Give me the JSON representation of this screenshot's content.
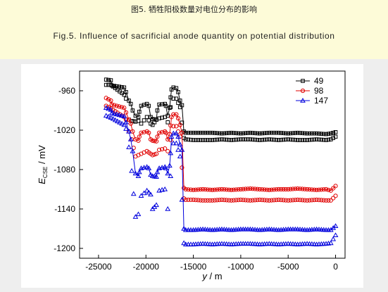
{
  "captions": {
    "cn": "图5. 牺牲阳极数量对电位分布的影响",
    "en": "Fig.5. Influence of sacrificial anode quantity on potential distribution"
  },
  "chart_data": {
    "type": "scatter",
    "xlabel": "y / m",
    "xlabel_var": "y",
    "xlabel_unit": " / m",
    "ylabel_var": "E",
    "ylabel_sub": "CSE",
    "ylabel_unit": " / mV",
    "xlim": [
      -27000,
      1000
    ],
    "ylim": [
      -1215,
      -930
    ],
    "xticks": [
      -25000,
      -20000,
      -15000,
      -10000,
      -5000,
      0
    ],
    "yticks": [
      -960,
      -1020,
      -1080,
      -1140,
      -1200
    ],
    "legend_position": "top-right",
    "series": [
      {
        "name": "49",
        "color": "#000000",
        "marker": "square",
        "upper": [
          [
            -24200,
            -943
          ],
          [
            -23700,
            -944
          ],
          [
            -23600,
            -952
          ],
          [
            -22300,
            -955
          ],
          [
            -22100,
            -962
          ],
          [
            -21800,
            -975
          ],
          [
            -21600,
            -980
          ],
          [
            -21400,
            -990
          ],
          [
            -21100,
            -998
          ],
          [
            -20800,
            -1000
          ],
          [
            -20700,
            -992
          ],
          [
            -20500,
            -983
          ],
          [
            -19900,
            -980
          ],
          [
            -19700,
            -983
          ],
          [
            -19500,
            -1000
          ],
          [
            -19300,
            -1003
          ],
          [
            -18900,
            -1004
          ],
          [
            -18800,
            -990
          ],
          [
            -18600,
            -981
          ],
          [
            -18000,
            -980
          ],
          [
            -17900,
            -983
          ],
          [
            -17700,
            -998
          ],
          [
            -17500,
            -986
          ],
          [
            -17400,
            -970
          ],
          [
            -17300,
            -958
          ],
          [
            -17100,
            -955
          ],
          [
            -16800,
            -956
          ],
          [
            -16600,
            -962
          ],
          [
            -16400,
            -975
          ],
          [
            -16200,
            -982
          ],
          [
            -16000,
            -1022
          ],
          [
            -15800,
            -1024
          ],
          [
            -15000,
            -1024
          ],
          [
            -14000,
            -1024
          ],
          [
            -13000,
            -1024
          ],
          [
            -12000,
            -1025
          ],
          [
            -11000,
            -1024
          ],
          [
            -10000,
            -1025
          ],
          [
            -9000,
            -1024
          ],
          [
            -8000,
            -1025
          ],
          [
            -7000,
            -1024
          ],
          [
            -6000,
            -1024
          ],
          [
            -5000,
            -1025
          ],
          [
            -4000,
            -1024
          ],
          [
            -3000,
            -1025
          ],
          [
            -2000,
            -1025
          ],
          [
            -1000,
            -1026
          ],
          [
            -500,
            -1025
          ],
          [
            0,
            -1023
          ]
        ],
        "lower": [
          [
            -24200,
            -951
          ],
          [
            -23700,
            -951
          ],
          [
            -22300,
            -966
          ],
          [
            -22100,
            -972
          ],
          [
            -21800,
            -1004
          ],
          [
            -21500,
            -1006
          ],
          [
            -21100,
            -1007
          ],
          [
            -20800,
            -1006
          ],
          [
            -20500,
            -1010
          ],
          [
            -19900,
            -1000
          ],
          [
            -19500,
            -1010
          ],
          [
            -19300,
            -1012
          ],
          [
            -18900,
            -1004
          ],
          [
            -18600,
            -1002
          ],
          [
            -18000,
            -1000
          ],
          [
            -17700,
            -1008
          ],
          [
            -17400,
            -985
          ],
          [
            -17100,
            -972
          ],
          [
            -16800,
            -972
          ],
          [
            -16400,
            -985
          ],
          [
            -16000,
            -1032
          ],
          [
            -15800,
            -1034
          ],
          [
            -15000,
            -1035
          ],
          [
            -14000,
            -1035
          ],
          [
            -13000,
            -1035
          ],
          [
            -12000,
            -1034
          ],
          [
            -11000,
            -1035
          ],
          [
            -10000,
            -1034
          ],
          [
            -9000,
            -1034
          ],
          [
            -8000,
            -1035
          ],
          [
            -7000,
            -1034
          ],
          [
            -6000,
            -1035
          ],
          [
            -5000,
            -1034
          ],
          [
            -4000,
            -1035
          ],
          [
            -3000,
            -1035
          ],
          [
            -2000,
            -1034
          ],
          [
            -1000,
            -1035
          ],
          [
            -500,
            -1034
          ],
          [
            0,
            -1030
          ]
        ]
      },
      {
        "name": "98",
        "color": "#e00000",
        "marker": "circle",
        "upper": [
          [
            -24200,
            -971
          ],
          [
            -23700,
            -975
          ],
          [
            -23600,
            -981
          ],
          [
            -22300,
            -986
          ],
          [
            -22100,
            -993
          ],
          [
            -21800,
            -1004
          ],
          [
            -21600,
            -1010
          ],
          [
            -21400,
            -1022
          ],
          [
            -21100,
            -1034
          ],
          [
            -20800,
            -1036
          ],
          [
            -20700,
            -1030
          ],
          [
            -20500,
            -1024
          ],
          [
            -19900,
            -1022
          ],
          [
            -19700,
            -1024
          ],
          [
            -19500,
            -1034
          ],
          [
            -19300,
            -1036
          ],
          [
            -18900,
            -1037
          ],
          [
            -18800,
            -1030
          ],
          [
            -18600,
            -1024
          ],
          [
            -18000,
            -1022
          ],
          [
            -17900,
            -1024
          ],
          [
            -17700,
            -1034
          ],
          [
            -17500,
            -1026
          ],
          [
            -17400,
            -1013
          ],
          [
            -17300,
            -1000
          ],
          [
            -17100,
            -996
          ],
          [
            -16800,
            -996
          ],
          [
            -16600,
            -1002
          ],
          [
            -16400,
            -1012
          ],
          [
            -16200,
            -1024
          ],
          [
            -16000,
            -1108
          ],
          [
            -15800,
            -1110
          ],
          [
            -15000,
            -1111
          ],
          [
            -14000,
            -1110
          ],
          [
            -13000,
            -1111
          ],
          [
            -12000,
            -1110
          ],
          [
            -11000,
            -1111
          ],
          [
            -10000,
            -1110
          ],
          [
            -9000,
            -1109
          ],
          [
            -8000,
            -1110
          ],
          [
            -7000,
            -1111
          ],
          [
            -6000,
            -1110
          ],
          [
            -5000,
            -1110
          ],
          [
            -4000,
            -1109
          ],
          [
            -3000,
            -1110
          ],
          [
            -2000,
            -1111
          ],
          [
            -1000,
            -1110
          ],
          [
            -500,
            -1112
          ],
          [
            0,
            -1105
          ]
        ],
        "lower": [
          [
            -24200,
            -983
          ],
          [
            -23700,
            -987
          ],
          [
            -22300,
            -1000
          ],
          [
            -22100,
            -1004
          ],
          [
            -21800,
            -1022
          ],
          [
            -21500,
            -1034
          ],
          [
            -21100,
            -1060
          ],
          [
            -20800,
            -1058
          ],
          [
            -20500,
            -1056
          ],
          [
            -19900,
            -1052
          ],
          [
            -19500,
            -1056
          ],
          [
            -19300,
            -1058
          ],
          [
            -18900,
            -1056
          ],
          [
            -18600,
            -1050
          ],
          [
            -18000,
            -1048
          ],
          [
            -17700,
            -1052
          ],
          [
            -17400,
            -1035
          ],
          [
            -17100,
            -1014
          ],
          [
            -16800,
            -1014
          ],
          [
            -16400,
            -1030
          ],
          [
            -16000,
            -1124
          ],
          [
            -15800,
            -1126
          ],
          [
            -15000,
            -1126
          ],
          [
            -14000,
            -1127
          ],
          [
            -13000,
            -1127
          ],
          [
            -12000,
            -1126
          ],
          [
            -11000,
            -1127
          ],
          [
            -10000,
            -1126
          ],
          [
            -9000,
            -1127
          ],
          [
            -8000,
            -1126
          ],
          [
            -7000,
            -1127
          ],
          [
            -6000,
            -1126
          ],
          [
            -5000,
            -1127
          ],
          [
            -4000,
            -1126
          ],
          [
            -3000,
            -1127
          ],
          [
            -2000,
            -1126
          ],
          [
            -1000,
            -1127
          ],
          [
            -500,
            -1127
          ],
          [
            0,
            -1120
          ]
        ]
      },
      {
        "name": "147",
        "color": "#0000dd",
        "marker": "triangle",
        "upper": [
          [
            -24200,
            -986
          ],
          [
            -23700,
            -989
          ],
          [
            -23600,
            -994
          ],
          [
            -22300,
            -999
          ],
          [
            -22100,
            -1008
          ],
          [
            -21800,
            -1022
          ],
          [
            -21600,
            -1034
          ],
          [
            -21400,
            -1052
          ],
          [
            -21100,
            -1086
          ],
          [
            -20800,
            -1090
          ],
          [
            -20700,
            -1084
          ],
          [
            -20500,
            -1078
          ],
          [
            -19900,
            -1076
          ],
          [
            -19700,
            -1078
          ],
          [
            -19500,
            -1088
          ],
          [
            -19300,
            -1090
          ],
          [
            -18900,
            -1091
          ],
          [
            -18800,
            -1084
          ],
          [
            -18600,
            -1078
          ],
          [
            -18000,
            -1076
          ],
          [
            -17900,
            -1078
          ],
          [
            -17700,
            -1086
          ],
          [
            -17500,
            -1074
          ],
          [
            -17400,
            -1055
          ],
          [
            -17300,
            -1030
          ],
          [
            -17100,
            -1025
          ],
          [
            -16800,
            -1025
          ],
          [
            -16600,
            -1030
          ],
          [
            -16400,
            -1042
          ],
          [
            -16200,
            -1050
          ],
          [
            -16000,
            -1170
          ],
          [
            -15800,
            -1172
          ],
          [
            -15000,
            -1172
          ],
          [
            -14000,
            -1171
          ],
          [
            -13000,
            -1172
          ],
          [
            -12000,
            -1171
          ],
          [
            -11000,
            -1172
          ],
          [
            -10000,
            -1171
          ],
          [
            -9000,
            -1171
          ],
          [
            -8000,
            -1172
          ],
          [
            -7000,
            -1171
          ],
          [
            -6000,
            -1172
          ],
          [
            -5000,
            -1171
          ],
          [
            -4000,
            -1171
          ],
          [
            -3000,
            -1172
          ],
          [
            -2000,
            -1171
          ],
          [
            -1000,
            -1172
          ],
          [
            -500,
            -1172
          ],
          [
            0,
            -1166
          ]
        ],
        "lower": [
          [
            -24200,
            -998
          ],
          [
            -23700,
            -1001
          ],
          [
            -22300,
            -1012
          ],
          [
            -22100,
            -1018
          ],
          [
            -21800,
            -1046
          ],
          [
            -21500,
            -1082
          ],
          [
            -21100,
            -1152
          ],
          [
            -20800,
            -1148
          ],
          [
            -20500,
            -1120
          ],
          [
            -19900,
            -1112
          ],
          [
            -19500,
            -1118
          ],
          [
            -19300,
            -1140
          ],
          [
            -18900,
            -1134
          ],
          [
            -18600,
            -1112
          ],
          [
            -18000,
            -1110
          ],
          [
            -17700,
            -1140
          ],
          [
            -17400,
            -1090
          ],
          [
            -17100,
            -1040
          ],
          [
            -16800,
            -1040
          ],
          [
            -16400,
            -1060
          ],
          [
            -16000,
            -1192
          ],
          [
            -15800,
            -1194
          ],
          [
            -15000,
            -1194
          ],
          [
            -14000,
            -1193
          ],
          [
            -13000,
            -1194
          ],
          [
            -12000,
            -1193
          ],
          [
            -11000,
            -1194
          ],
          [
            -10000,
            -1193
          ],
          [
            -9000,
            -1193
          ],
          [
            -8000,
            -1194
          ],
          [
            -7000,
            -1193
          ],
          [
            -6000,
            -1194
          ],
          [
            -5000,
            -1193
          ],
          [
            -4000,
            -1194
          ],
          [
            -3000,
            -1193
          ],
          [
            -2000,
            -1194
          ],
          [
            -1000,
            -1193
          ],
          [
            -500,
            -1192
          ],
          [
            0,
            -1180
          ]
        ]
      }
    ]
  }
}
